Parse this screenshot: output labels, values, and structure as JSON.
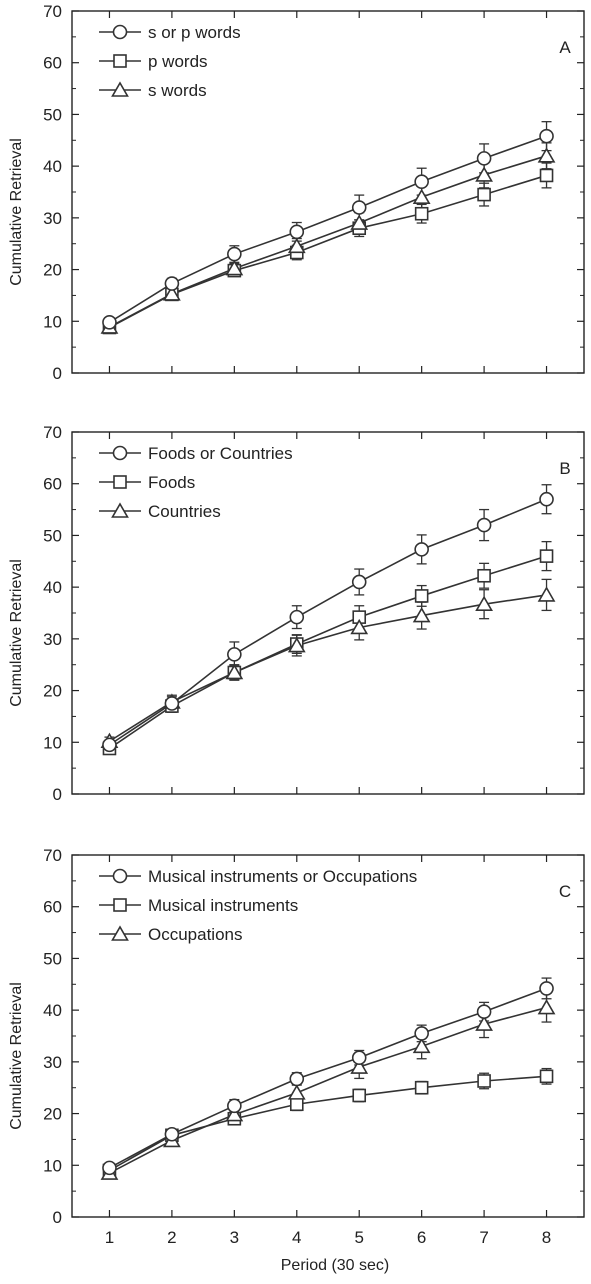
{
  "xlabel": "Period (30 sec)",
  "chart_data": [
    {
      "type": "line",
      "panel_label": "A",
      "ylabel": "Cumulative Retrieval",
      "xlabel": "Period (30 sec)",
      "x": [
        1,
        2,
        3,
        4,
        5,
        6,
        7,
        8
      ],
      "xlim": [
        0.4,
        8.6
      ],
      "ylim": [
        0,
        70
      ],
      "yticks": [
        0,
        10,
        20,
        30,
        40,
        50,
        60,
        70
      ],
      "legend_position": "top-left",
      "series": [
        {
          "name": "s or p words",
          "marker": "circle",
          "values": [
            9.8,
            17.3,
            23.0,
            27.3,
            32.0,
            37.0,
            41.5,
            45.8
          ],
          "errors": [
            0.8,
            1.0,
            1.6,
            1.8,
            2.4,
            2.6,
            2.8,
            2.8
          ]
        },
        {
          "name": "p words",
          "marker": "square",
          "values": [
            8.8,
            15.2,
            19.8,
            23.3,
            28.0,
            30.8,
            34.5,
            38.2
          ],
          "errors": [
            0.8,
            0.8,
            1.0,
            1.4,
            1.6,
            1.8,
            2.2,
            2.4
          ]
        },
        {
          "name": "s words",
          "marker": "triangle",
          "values": [
            8.9,
            15.3,
            20.2,
            24.5,
            29.0,
            34.0,
            38.3,
            42.0
          ],
          "errors": [
            0.8,
            0.8,
            1.0,
            1.5,
            2.0,
            2.5,
            2.5,
            2.5
          ]
        }
      ]
    },
    {
      "type": "line",
      "panel_label": "B",
      "ylabel": "Cumulative Retrieval",
      "xlabel": "Period (30 sec)",
      "x": [
        1,
        2,
        3,
        4,
        5,
        6,
        7,
        8
      ],
      "xlim": [
        0.4,
        8.6
      ],
      "ylim": [
        0,
        70
      ],
      "yticks": [
        0,
        10,
        20,
        30,
        40,
        50,
        60,
        70
      ],
      "legend_position": "top-left",
      "series": [
        {
          "name": "Foods or Countries",
          "marker": "circle",
          "values": [
            9.5,
            17.5,
            27.0,
            34.2,
            41.0,
            47.3,
            52.0,
            57.0
          ],
          "errors": [
            0.8,
            1.3,
            2.4,
            2.2,
            2.5,
            2.8,
            3.0,
            2.8
          ]
        },
        {
          "name": "Foods",
          "marker": "square",
          "values": [
            8.8,
            17.0,
            23.5,
            29.0,
            34.2,
            38.3,
            42.2,
            46.0
          ],
          "errors": [
            0.8,
            1.2,
            1.4,
            1.8,
            2.2,
            2.0,
            2.4,
            2.8
          ]
        },
        {
          "name": "Countries",
          "marker": "triangle",
          "values": [
            10.2,
            17.8,
            23.5,
            28.7,
            32.2,
            34.5,
            36.7,
            38.5
          ],
          "errors": [
            0.8,
            1.3,
            1.5,
            2.0,
            2.4,
            2.6,
            2.8,
            3.0
          ]
        }
      ]
    },
    {
      "type": "line",
      "panel_label": "C",
      "ylabel": "Cumulative Retrieval",
      "xlabel": "Period (30 sec)",
      "x": [
        1,
        2,
        3,
        4,
        5,
        6,
        7,
        8
      ],
      "xlim": [
        0.4,
        8.6
      ],
      "ylim": [
        0,
        70
      ],
      "yticks": [
        0,
        10,
        20,
        30,
        40,
        50,
        60,
        70
      ],
      "legend_position": "top-left",
      "series": [
        {
          "name": "Musical instruments or Occupations",
          "marker": "circle",
          "values": [
            9.5,
            16.0,
            21.5,
            26.7,
            30.8,
            35.5,
            39.7,
            44.2
          ],
          "errors": [
            0.7,
            0.9,
            1.2,
            1.2,
            1.4,
            1.6,
            1.8,
            2.0
          ]
        },
        {
          "name": "Musical instruments",
          "marker": "square",
          "values": [
            9.0,
            15.8,
            19.0,
            21.8,
            23.5,
            25.0,
            26.3,
            27.2
          ],
          "errors": [
            0.7,
            0.8,
            1.0,
            1.2,
            1.2,
            1.2,
            1.5,
            1.5
          ]
        },
        {
          "name": "Occupations",
          "marker": "triangle",
          "values": [
            8.5,
            14.8,
            19.8,
            24.0,
            29.0,
            33.0,
            37.3,
            40.5
          ],
          "errors": [
            0.7,
            0.9,
            1.2,
            1.8,
            2.2,
            2.4,
            2.6,
            2.8
          ]
        }
      ]
    }
  ]
}
